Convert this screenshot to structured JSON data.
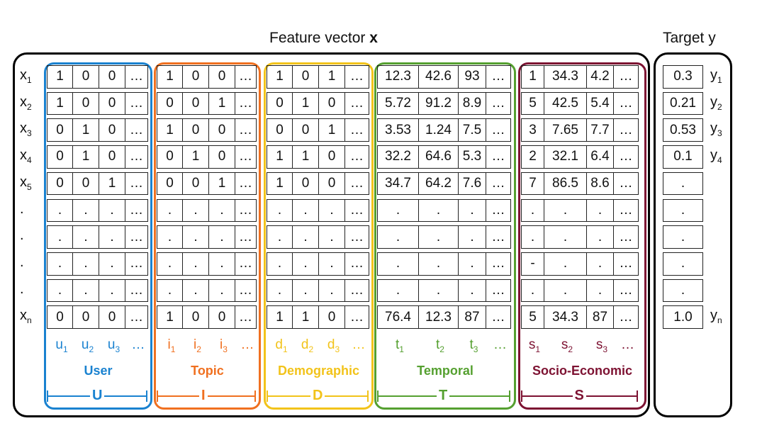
{
  "title": {
    "text": "Feature vector ",
    "bold": "x"
  },
  "target_title": "Target y",
  "colors": {
    "user": "#1a82d0",
    "topic": "#f07020",
    "demographic": "#f2c31a",
    "temporal": "#55a030",
    "socio": "#7d1232",
    "outer": "#000000"
  },
  "row_labels": [
    {
      "base": "x",
      "sub": "1"
    },
    {
      "base": "x",
      "sub": "2"
    },
    {
      "base": "x",
      "sub": "3"
    },
    {
      "base": "x",
      "sub": "4"
    },
    {
      "base": "x",
      "sub": "5"
    },
    {
      "base": ".",
      "sub": ""
    },
    {
      "base": ".",
      "sub": ""
    },
    {
      "base": ".",
      "sub": ""
    },
    {
      "base": ".",
      "sub": ""
    },
    {
      "base": "x",
      "sub": "n"
    }
  ],
  "groups": [
    {
      "key": "user",
      "name": "User",
      "letter": "U",
      "labels": [
        {
          "base": "u",
          "sub": "1"
        },
        {
          "base": "u",
          "sub": "2"
        },
        {
          "base": "u",
          "sub": "3"
        },
        {
          "base": "…",
          "sub": ""
        }
      ],
      "rows": [
        [
          "1",
          "0",
          "0",
          "…"
        ],
        [
          "1",
          "0",
          "0",
          "…"
        ],
        [
          "0",
          "1",
          "0",
          "…"
        ],
        [
          "0",
          "1",
          "0",
          "…"
        ],
        [
          "0",
          "0",
          "1",
          "…"
        ],
        [
          ".",
          ".",
          ".",
          "…"
        ],
        [
          ".",
          ".",
          ".",
          "…"
        ],
        [
          ".",
          ".",
          ".",
          "…"
        ],
        [
          ".",
          ".",
          ".",
          "…"
        ],
        [
          "0",
          "0",
          "0",
          "…"
        ]
      ]
    },
    {
      "key": "topic",
      "name": "Topic",
      "letter": "I",
      "labels": [
        {
          "base": "i",
          "sub": "1"
        },
        {
          "base": "i",
          "sub": "2"
        },
        {
          "base": "i",
          "sub": "3"
        },
        {
          "base": "…",
          "sub": ""
        }
      ],
      "rows": [
        [
          "1",
          "0",
          "0",
          "…"
        ],
        [
          "0",
          "0",
          "1",
          "…"
        ],
        [
          "1",
          "0",
          "0",
          "…"
        ],
        [
          "0",
          "1",
          "0",
          "…"
        ],
        [
          "0",
          "0",
          "1",
          "…"
        ],
        [
          ".",
          ".",
          ".",
          "…"
        ],
        [
          ".",
          ".",
          ".",
          "…"
        ],
        [
          ".",
          ".",
          ".",
          "…"
        ],
        [
          ".",
          ".",
          ".",
          "…"
        ],
        [
          "1",
          "0",
          "0",
          "…"
        ]
      ]
    },
    {
      "key": "demographic",
      "name": "Demographic",
      "letter": "D",
      "labels": [
        {
          "base": "d",
          "sub": "1"
        },
        {
          "base": "d",
          "sub": "2"
        },
        {
          "base": "d",
          "sub": "3"
        },
        {
          "base": "…",
          "sub": ""
        }
      ],
      "rows": [
        [
          "1",
          "0",
          "1",
          "…"
        ],
        [
          "0",
          "1",
          "0",
          "…"
        ],
        [
          "0",
          "0",
          "1",
          "…"
        ],
        [
          "1",
          "1",
          "0",
          "…"
        ],
        [
          "1",
          "0",
          "0",
          "…"
        ],
        [
          ".",
          ".",
          ".",
          "…"
        ],
        [
          ".",
          ".",
          ".",
          "…"
        ],
        [
          ".",
          ".",
          ".",
          "…"
        ],
        [
          ".",
          ".",
          ".",
          "…"
        ],
        [
          "1",
          "1",
          "0",
          "…"
        ]
      ]
    },
    {
      "key": "temporal",
      "name": "Temporal",
      "letter": "T",
      "labels": [
        {
          "base": "t",
          "sub": "1"
        },
        {
          "base": "t",
          "sub": "2"
        },
        {
          "base": "t",
          "sub": "3"
        },
        {
          "base": "…",
          "sub": ""
        }
      ],
      "rows": [
        [
          "12.3",
          "42.6",
          "93",
          "…"
        ],
        [
          "5.72",
          "91.2",
          "8.9",
          "…"
        ],
        [
          "3.53",
          "1.24",
          "7.5",
          "…"
        ],
        [
          "32.2",
          "64.6",
          "5.3",
          "…"
        ],
        [
          "34.7",
          "64.2",
          "7.6",
          "…"
        ],
        [
          ".",
          ".",
          ".",
          "…"
        ],
        [
          ".",
          ".",
          ".",
          "…"
        ],
        [
          ".",
          ".",
          ".",
          "…"
        ],
        [
          ".",
          ".",
          ".",
          "…"
        ],
        [
          "76.4",
          "12.3",
          "87",
          "…"
        ]
      ]
    },
    {
      "key": "socio",
      "name": "Socio-Economic",
      "letter": "S",
      "labels": [
        {
          "base": "s",
          "sub": "1"
        },
        {
          "base": "s",
          "sub": "2"
        },
        {
          "base": "s",
          "sub": "3"
        },
        {
          "base": "…",
          "sub": ""
        }
      ],
      "rows": [
        [
          "1",
          "34.3",
          "4.2",
          "…"
        ],
        [
          "5",
          "42.5",
          "5.4",
          "…"
        ],
        [
          "3",
          "7.65",
          "7.7",
          "…"
        ],
        [
          "2",
          "32.1",
          "6.4",
          "…"
        ],
        [
          "7",
          "86.5",
          "8.6",
          "…"
        ],
        [
          ".",
          ".",
          ".",
          "…"
        ],
        [
          ".",
          ".",
          ".",
          "…"
        ],
        [
          "-",
          ".",
          ".",
          "…"
        ],
        [
          ".",
          ".",
          ".",
          "…"
        ],
        [
          "5",
          "34.3",
          "87",
          "…"
        ]
      ]
    }
  ],
  "targets": [
    {
      "value": "0.3",
      "label": {
        "base": "y",
        "sub": "1"
      }
    },
    {
      "value": "0.21",
      "label": {
        "base": "y",
        "sub": "2"
      }
    },
    {
      "value": "0.53",
      "label": {
        "base": "y",
        "sub": "3"
      }
    },
    {
      "value": "0.1",
      "label": {
        "base": "y",
        "sub": "4"
      }
    },
    {
      "value": ".",
      "label": null
    },
    {
      "value": ".",
      "label": null
    },
    {
      "value": ".",
      "label": null
    },
    {
      "value": ".",
      "label": null
    },
    {
      "value": ".",
      "label": null
    },
    {
      "value": "1.0",
      "label": {
        "base": "y",
        "sub": "n"
      }
    }
  ]
}
